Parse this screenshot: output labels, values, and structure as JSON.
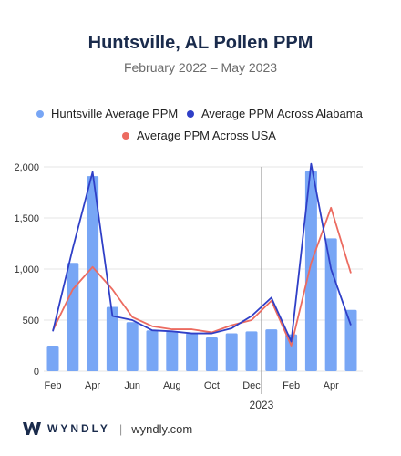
{
  "title": "Huntsville, AL Pollen PPM",
  "subtitle": "February 2022 – May 2023",
  "colors": {
    "bar": "#78a6f5",
    "alabama": "#2f3fc7",
    "usa": "#ec6b60",
    "grid": "#e6e6e6",
    "divider": "#9a9a9a"
  },
  "footer": {
    "brand": "WYNDLY",
    "separator": "|",
    "site": "wyndly.com"
  },
  "chart_data": {
    "type": "bar",
    "categories": [
      "Feb 2022",
      "Mar 2022",
      "Apr 2022",
      "May 2022",
      "Jun 2022",
      "Jul 2022",
      "Aug 2022",
      "Sep 2022",
      "Oct 2022",
      "Nov 2022",
      "Dec 2022",
      "Jan 2023",
      "Feb 2023",
      "Mar 2023",
      "Apr 2023",
      "May 2023"
    ],
    "tick_labels": [
      "Feb",
      "",
      "Apr",
      "",
      "Jun",
      "",
      "Aug",
      "",
      "Oct",
      "",
      "Dec",
      "",
      "Feb",
      "",
      "Apr",
      ""
    ],
    "year_marker": {
      "label": "2023",
      "before_index": 11
    },
    "series": [
      {
        "name": "Huntsville Average PPM",
        "kind": "bar",
        "values": [
          250,
          1060,
          1910,
          630,
          480,
          400,
          390,
          370,
          330,
          370,
          390,
          410,
          360,
          1960,
          1300,
          600
        ]
      },
      {
        "name": "Average PPM Across Alabama",
        "kind": "line",
        "values": [
          390,
          1200,
          1950,
          540,
          500,
          400,
          390,
          370,
          370,
          420,
          540,
          720,
          290,
          2030,
          1000,
          450
        ]
      },
      {
        "name": "Average PPM Across USA",
        "kind": "line",
        "values": [
          400,
          800,
          1020,
          800,
          530,
          440,
          410,
          410,
          380,
          450,
          500,
          690,
          250,
          1060,
          1600,
          960
        ]
      }
    ],
    "ylim": [
      0,
      2000
    ],
    "yticks": [
      0,
      500,
      1000,
      1500,
      2000
    ],
    "ytick_labels": [
      "0",
      "500",
      "1,000",
      "1,500",
      "2,000"
    ],
    "grid": true,
    "legend": "top"
  }
}
